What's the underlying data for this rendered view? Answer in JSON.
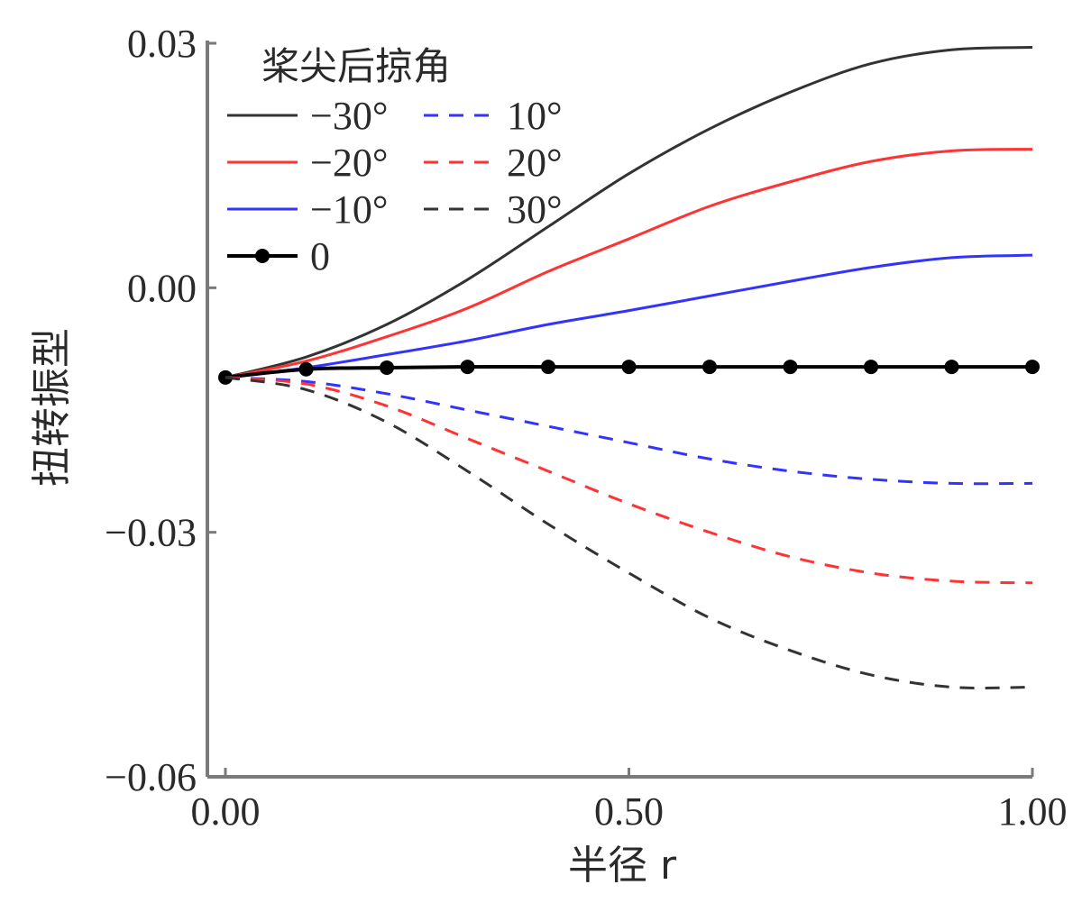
{
  "chart_data": {
    "type": "line",
    "xlabel": "半径 r",
    "ylabel": "扭转振型",
    "xlim": [
      0,
      1
    ],
    "ylim": [
      -0.06,
      0.03
    ],
    "xticks": [
      "0.00",
      "0.50",
      "1.00"
    ],
    "yticks": [
      "0.03",
      "0.00",
      "−0.03",
      "−0.06"
    ],
    "legend_title": "桨尖后掠角",
    "legend_position": "top-left",
    "x": [
      0,
      0.1,
      0.2,
      0.3,
      0.4,
      0.5,
      0.6,
      0.7,
      0.8,
      0.9,
      1.0
    ],
    "series": [
      {
        "name": "−30°",
        "color": "#333333",
        "style": "solid",
        "marker": false,
        "values": [
          -0.011,
          -0.0085,
          -0.0045,
          0.001,
          0.0075,
          0.014,
          0.0195,
          0.024,
          0.0275,
          0.0292,
          0.0295
        ]
      },
      {
        "name": "−20°",
        "color": "#ff3333",
        "style": "solid",
        "marker": false,
        "values": [
          -0.011,
          -0.009,
          -0.006,
          -0.0025,
          0.002,
          0.006,
          0.01,
          0.013,
          0.0155,
          0.0168,
          0.017
        ]
      },
      {
        "name": "−10°",
        "color": "#3333ff",
        "style": "solid",
        "marker": false,
        "values": [
          -0.011,
          -0.0098,
          -0.0082,
          -0.0065,
          -0.0045,
          -0.0028,
          -0.001,
          0.0008,
          0.0025,
          0.0037,
          0.004
        ]
      },
      {
        "name": "0",
        "color": "#000000",
        "style": "solid",
        "marker": true,
        "values": [
          -0.011,
          -0.01,
          -0.0098,
          -0.0097,
          -0.0097,
          -0.0097,
          -0.0097,
          -0.0097,
          -0.0097,
          -0.0097,
          -0.0097
        ]
      },
      {
        "name": "10°",
        "color": "#3333ff",
        "style": "dashed",
        "marker": false,
        "values": [
          -0.011,
          -0.0115,
          -0.013,
          -0.015,
          -0.017,
          -0.019,
          -0.021,
          -0.0225,
          -0.0235,
          -0.024,
          -0.024
        ]
      },
      {
        "name": "20°",
        "color": "#ff3333",
        "style": "dashed",
        "marker": false,
        "values": [
          -0.011,
          -0.0118,
          -0.0145,
          -0.0185,
          -0.0225,
          -0.0265,
          -0.03,
          -0.033,
          -0.035,
          -0.036,
          -0.0362
        ]
      },
      {
        "name": "30°",
        "color": "#333333",
        "style": "dashed",
        "marker": false,
        "values": [
          -0.011,
          -0.0125,
          -0.0165,
          -0.0225,
          -0.029,
          -0.035,
          -0.0405,
          -0.0445,
          -0.0475,
          -0.049,
          -0.049
        ]
      }
    ]
  }
}
